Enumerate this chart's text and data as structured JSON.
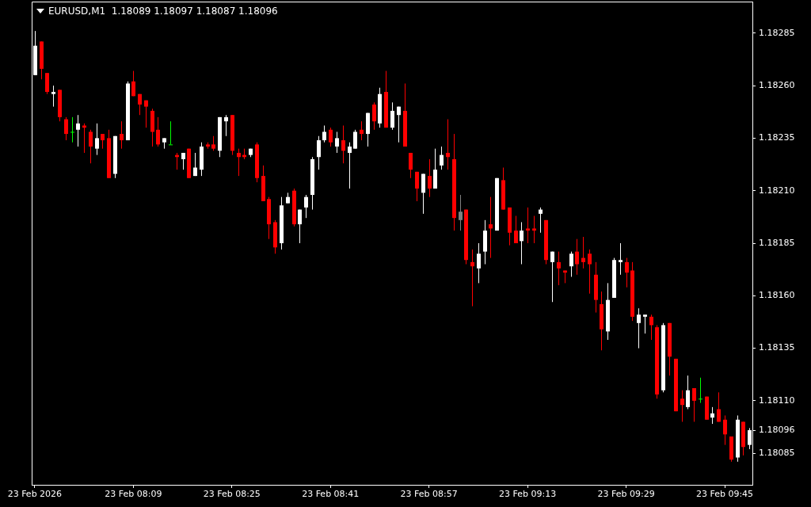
{
  "chart_data": {
    "type": "candlestick",
    "title": "EURUSD,M1  1.18089 1.18097 1.18087 1.18096",
    "categories": [
      "23 Feb 2026",
      null,
      null,
      null,
      null,
      null,
      null,
      null,
      null,
      null,
      null,
      null,
      null,
      null,
      null,
      null,
      "23 Feb 08:09",
      null,
      null,
      null,
      null,
      null,
      null,
      null,
      null,
      null,
      null,
      null,
      null,
      null,
      null,
      null,
      "23 Feb 08:25",
      null,
      null,
      null,
      null,
      null,
      null,
      null,
      null,
      null,
      null,
      null,
      null,
      null,
      null,
      null,
      "23 Feb 08:41",
      null,
      null,
      null,
      null,
      null,
      null,
      null,
      null,
      null,
      null,
      null,
      null,
      null,
      null,
      null,
      "23 Feb 08:57",
      null,
      null,
      null,
      null,
      null,
      null,
      null,
      null,
      null,
      null,
      null,
      null,
      null,
      null,
      null,
      "23 Feb 09:13",
      null,
      null,
      null,
      null,
      null,
      null,
      null,
      null,
      null,
      null,
      null,
      null,
      null,
      null,
      null,
      "23 Feb 09:29",
      null,
      null,
      null,
      null,
      null,
      null,
      null,
      null,
      null,
      null,
      null,
      null,
      null,
      null,
      null,
      "23 Feb 09:45",
      null,
      null,
      null,
      null
    ],
    "ohlc": [
      [
        1.18265,
        1.18286,
        1.18265,
        1.18279
      ],
      [
        1.18281,
        1.18281,
        1.18263,
        1.18268
      ],
      [
        1.18266,
        1.18266,
        1.18256,
        1.18257
      ],
      [
        1.18256,
        1.1826,
        1.1825,
        1.18257
      ],
      [
        1.18258,
        1.18258,
        1.18243,
        1.18245
      ],
      [
        1.18244,
        1.18245,
        1.18234,
        1.18237
      ],
      [
        1.18238,
        1.18245,
        1.18233,
        1.18238
      ],
      [
        1.18239,
        1.18246,
        1.18231,
        1.18242
      ],
      [
        1.18241,
        1.18242,
        1.18228,
        1.1824
      ],
      [
        1.18238,
        1.18239,
        1.18223,
        1.18231
      ],
      [
        1.1823,
        1.18242,
        1.18227,
        1.18235
      ],
      [
        1.18237,
        1.18237,
        1.1823,
        1.18234
      ],
      [
        1.18235,
        1.18239,
        1.18216,
        1.18216
      ],
      [
        1.18218,
        1.18236,
        1.18216,
        1.18236
      ],
      [
        1.18237,
        1.18243,
        1.1823,
        1.18234
      ],
      [
        1.18234,
        1.18262,
        1.18234,
        1.18261
      ],
      [
        1.18262,
        1.18267,
        1.18255,
        1.18255
      ],
      [
        1.18256,
        1.18256,
        1.18246,
        1.18251
      ],
      [
        1.18253,
        1.18253,
        1.1824,
        1.1825
      ],
      [
        1.18248,
        1.18249,
        1.18231,
        1.18238
      ],
      [
        1.18239,
        1.18245,
        1.18231,
        1.18232
      ],
      [
        1.18233,
        1.18235,
        1.1823,
        1.18235
      ],
      [
        1.18232,
        1.18243,
        1.18232,
        1.18232
      ],
      [
        1.18227,
        1.18228,
        1.1822,
        1.18226
      ],
      [
        1.18225,
        1.18228,
        1.1822,
        1.18228
      ],
      [
        1.1823,
        1.1823,
        1.18216,
        1.18216
      ],
      [
        1.18217,
        1.18228,
        1.18217,
        1.18221
      ],
      [
        1.1822,
        1.18233,
        1.18217,
        1.18231
      ],
      [
        1.18232,
        1.18233,
        1.1823,
        1.18231
      ],
      [
        1.18232,
        1.18236,
        1.18229,
        1.1823
      ],
      [
        1.18229,
        1.18245,
        1.18226,
        1.18245
      ],
      [
        1.18243,
        1.18246,
        1.18236,
        1.18245
      ],
      [
        1.18246,
        1.18246,
        1.18227,
        1.18229
      ],
      [
        1.18228,
        1.1823,
        1.18217,
        1.18226
      ],
      [
        1.18227,
        1.1823,
        1.18225,
        1.18226
      ],
      [
        1.18227,
        1.1823,
        1.18226,
        1.1823
      ],
      [
        1.18232,
        1.18233,
        1.18214,
        1.18216
      ],
      [
        1.18217,
        1.18222,
        1.18205,
        1.18205
      ],
      [
        1.18206,
        1.18207,
        1.18187,
        1.18194
      ],
      [
        1.18195,
        1.18196,
        1.1818,
        1.18183
      ],
      [
        1.18185,
        1.18207,
        1.18182,
        1.18203
      ],
      [
        1.18204,
        1.18209,
        1.18204,
        1.18207
      ],
      [
        1.1821,
        1.18211,
        1.18193,
        1.18194
      ],
      [
        1.18194,
        1.18201,
        1.18185,
        1.18201
      ],
      [
        1.18202,
        1.18208,
        1.18197,
        1.18207
      ],
      [
        1.18208,
        1.18226,
        1.18201,
        1.18225
      ],
      [
        1.18226,
        1.18236,
        1.1822,
        1.18234
      ],
      [
        1.18234,
        1.18241,
        1.18233,
        1.18238
      ],
      [
        1.18239,
        1.1824,
        1.18231,
        1.18233
      ],
      [
        1.18231,
        1.18238,
        1.18228,
        1.18235
      ],
      [
        1.18234,
        1.18241,
        1.18223,
        1.18229
      ],
      [
        1.18228,
        1.18233,
        1.18211,
        1.18231
      ],
      [
        1.1823,
        1.18239,
        1.1823,
        1.18238
      ],
      [
        1.18239,
        1.18243,
        1.18234,
        1.18237
      ],
      [
        1.18237,
        1.18247,
        1.18231,
        1.18247
      ],
      [
        1.18251,
        1.18252,
        1.18239,
        1.18243
      ],
      [
        1.18242,
        1.18259,
        1.1824,
        1.18256
      ],
      [
        1.18257,
        1.18267,
        1.1824,
        1.1824
      ],
      [
        1.1824,
        1.18252,
        1.18239,
        1.18248
      ],
      [
        1.18246,
        1.1825,
        1.18233,
        1.1825
      ],
      [
        1.18248,
        1.18261,
        1.18231,
        1.18231
      ],
      [
        1.18228,
        1.18228,
        1.18216,
        1.1822
      ],
      [
        1.18219,
        1.18219,
        1.18205,
        1.18211
      ],
      [
        1.18209,
        1.18218,
        1.18199,
        1.18218
      ],
      [
        1.18217,
        1.18225,
        1.18207,
        1.18211
      ],
      [
        1.18211,
        1.1823,
        1.18211,
        1.1822
      ],
      [
        1.18222,
        1.18231,
        1.1822,
        1.18227
      ],
      [
        1.18228,
        1.18244,
        1.1822,
        1.18226
      ],
      [
        1.18225,
        1.18237,
        1.18191,
        1.18197
      ],
      [
        1.18196,
        1.18208,
        1.18191,
        1.182
      ],
      [
        1.18201,
        1.18201,
        1.18175,
        1.18177
      ],
      [
        1.18176,
        1.18182,
        1.18155,
        1.18174
      ],
      [
        1.18173,
        1.18185,
        1.18166,
        1.1818
      ],
      [
        1.18181,
        1.18196,
        1.18175,
        1.18191
      ],
      [
        1.18194,
        1.18207,
        1.18178,
        1.18192
      ],
      [
        1.18191,
        1.18216,
        1.18191,
        1.18216
      ],
      [
        1.18215,
        1.18221,
        1.18201,
        1.18201
      ],
      [
        1.18202,
        1.18202,
        1.18184,
        1.1819
      ],
      [
        1.18191,
        1.18198,
        1.18185,
        1.18185
      ],
      [
        1.18186,
        1.18195,
        1.18175,
        1.18191
      ],
      [
        1.18192,
        1.18202,
        1.18185,
        1.18191
      ],
      [
        1.18192,
        1.18198,
        1.18185,
        1.18191
      ],
      [
        1.18199,
        1.18202,
        1.1819,
        1.18201
      ],
      [
        1.18196,
        1.18196,
        1.18175,
        1.18177
      ],
      [
        1.18176,
        1.18181,
        1.18157,
        1.18181
      ],
      [
        1.18176,
        1.18181,
        1.18165,
        1.18173
      ],
      [
        1.18172,
        1.18172,
        1.18166,
        1.18171
      ],
      [
        1.18174,
        1.18181,
        1.18169,
        1.1818
      ],
      [
        1.18181,
        1.18187,
        1.1817,
        1.18175
      ],
      [
        1.18178,
        1.18188,
        1.18173,
        1.18176
      ],
      [
        1.1818,
        1.18182,
        1.18161,
        1.18175
      ],
      [
        1.1817,
        1.18176,
        1.18152,
        1.18158
      ],
      [
        1.18156,
        1.18162,
        1.18134,
        1.18144
      ],
      [
        1.18143,
        1.18166,
        1.18139,
        1.18158
      ],
      [
        1.18159,
        1.18178,
        1.18159,
        1.18177
      ],
      [
        1.18176,
        1.18185,
        1.1817,
        1.18177
      ],
      [
        1.18176,
        1.18178,
        1.18164,
        1.18171
      ],
      [
        1.18172,
        1.18176,
        1.18148,
        1.1815
      ],
      [
        1.18147,
        1.18154,
        1.18135,
        1.18151
      ],
      [
        1.1815,
        1.18151,
        1.18142,
        1.18151
      ],
      [
        1.1815,
        1.18151,
        1.18139,
        1.18146
      ],
      [
        1.18145,
        1.18146,
        1.18111,
        1.18113
      ],
      [
        1.18115,
        1.18147,
        1.18114,
        1.18146
      ],
      [
        1.18147,
        1.18147,
        1.18122,
        1.18131
      ],
      [
        1.1813,
        1.1813,
        1.18105,
        1.18105
      ],
      [
        1.18111,
        1.18115,
        1.181,
        1.18108
      ],
      [
        1.18107,
        1.18122,
        1.18106,
        1.18115
      ],
      [
        1.18116,
        1.18116,
        1.181,
        1.1811
      ],
      [
        1.18111,
        1.18121,
        1.18109,
        1.18111
      ],
      [
        1.18112,
        1.18112,
        1.18101,
        1.18101
      ],
      [
        1.18102,
        1.18107,
        1.18099,
        1.18104
      ],
      [
        1.18106,
        1.18114,
        1.181,
        1.181
      ],
      [
        1.18101,
        1.18103,
        1.18089,
        1.18094
      ],
      [
        1.18093,
        1.18093,
        1.18081,
        1.18082
      ],
      [
        1.18083,
        1.18103,
        1.18081,
        1.18101
      ],
      [
        1.181,
        1.181,
        1.18084,
        1.18088
      ],
      [
        1.18089,
        1.18097,
        1.18087,
        1.18096
      ]
    ],
    "colors": [
      "#ffffff",
      "#ff0000",
      "#ff0000",
      "#ffffff",
      "#ff0000",
      "#ff0000",
      "#00ff00",
      "#ffffff",
      "#ff0000",
      "#ff0000",
      "#ffffff",
      "#ff0000",
      "#ff0000",
      "#ffffff",
      "#ff0000",
      "#ffffff",
      "#ff0000",
      "#ff0000",
      "#ff0000",
      "#ff0000",
      "#ff0000",
      "#ffffff",
      "#00ff00",
      "#ff0000",
      "#ffffff",
      "#ff0000",
      "#ffffff",
      "#ffffff",
      "#ff0000",
      "#ff0000",
      "#ffffff",
      "#ffffff",
      "#ff0000",
      "#ff0000",
      "#ff0000",
      "#ffffff",
      "#ff0000",
      "#ff0000",
      "#ff0000",
      "#ff0000",
      "#ffffff",
      "#ffffff",
      "#ff0000",
      "#ffffff",
      "#ffffff",
      "#ffffff",
      "#ffffff",
      "#ffffff",
      "#ff0000",
      "#ffffff",
      "#ff0000",
      "#ffffff",
      "#ffffff",
      "#ff0000",
      "#ffffff",
      "#ff0000",
      "#ffffff",
      "#ff0000",
      "#ffffff",
      "#ffffff",
      "#ff0000",
      "#ff0000",
      "#ff0000",
      "#ffffff",
      "#ff0000",
      "#ffffff",
      "#ffffff",
      "#ff0000",
      "#ff0000",
      "#808080",
      "#ff0000",
      "#ff0000",
      "#ffffff",
      "#ffffff",
      "#ff0000",
      "#ffffff",
      "#ff0000",
      "#ff0000",
      "#ff0000",
      "#ffffff",
      "#ff0000",
      "#ff0000",
      "#ffffff",
      "#ff0000",
      "#ffffff",
      "#ff0000",
      "#ff0000",
      "#ffffff",
      "#ff0000",
      "#ff0000",
      "#ff0000",
      "#ff0000",
      "#ff0000",
      "#ffffff",
      "#ffffff",
      "#ffffff",
      "#ff0000",
      "#ff0000",
      "#ffffff",
      "#ffffff",
      "#ff0000",
      "#ff0000",
      "#ffffff",
      "#ff0000",
      "#ff0000",
      "#ff0000",
      "#ffffff",
      "#ff0000",
      "#00ff00",
      "#ff0000",
      "#ffffff",
      "#ff0000",
      "#ff0000",
      "#ff0000",
      "#ffffff",
      "#ff0000",
      "#ffffff"
    ],
    "ylim": [
      1.1807,
      1.183
    ],
    "yticks": [
      1.18085,
      {
        "value": 1.18096,
        "label": "1.18096"
      },
      {
        "value": 1.1811,
        "label": "1.18110"
      },
      1.18135,
      {
        "value": 1.1816,
        "label": "1.18160"
      },
      1.18185,
      {
        "value": 1.1821,
        "label": "1.18210"
      },
      1.18235,
      {
        "value": 1.1826,
        "label": "1.18260"
      },
      1.18285
    ]
  }
}
